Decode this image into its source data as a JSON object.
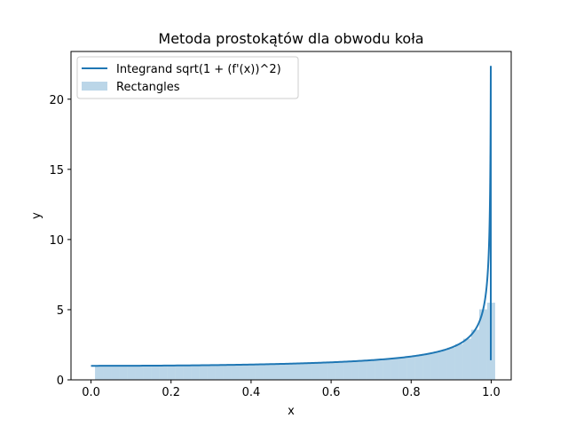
{
  "chart_data": {
    "type": "line",
    "title": "Metoda prostokątów dla obwodu koła",
    "xlabel": "x",
    "ylabel": "y",
    "xlim": [
      -0.05,
      1.05
    ],
    "ylim": [
      0,
      23.4
    ],
    "xticks": [
      "0.0",
      "0.2",
      "0.4",
      "0.6",
      "0.8",
      "1.0"
    ],
    "yticks": [
      "0",
      "5",
      "10",
      "15",
      "20"
    ],
    "legend_position": "top-left",
    "colors": {
      "line": "#1f77b4",
      "bars": "#1f77b4"
    },
    "series": [
      {
        "name": "Integrand sqrt(1 + (f'(x))^2)",
        "type": "line",
        "formula": "1/sqrt(1-x^2)",
        "x_start": 0.0,
        "x_end": 0.999,
        "y_at_x_end": 22.37
      },
      {
        "name": "Rectangles",
        "type": "bar",
        "bar_width": 0.02,
        "x": [
          0.02,
          0.04,
          0.06,
          0.08,
          0.1,
          0.12,
          0.14,
          0.16,
          0.18,
          0.2,
          0.22,
          0.24,
          0.26,
          0.28,
          0.3,
          0.32,
          0.34,
          0.36,
          0.38,
          0.4,
          0.42,
          0.44,
          0.46,
          0.48,
          0.5,
          0.52,
          0.54,
          0.56,
          0.58,
          0.6,
          0.62,
          0.64,
          0.66,
          0.68,
          0.7,
          0.72,
          0.74,
          0.76,
          0.78,
          0.8,
          0.82,
          0.84,
          0.86,
          0.88,
          0.9,
          0.92,
          0.94,
          0.96,
          0.98,
          1.0
        ],
        "values": [
          1.0002,
          1.0008,
          1.0018,
          1.0032,
          1.005,
          1.0073,
          1.0099,
          1.013,
          1.0166,
          1.0206,
          1.0251,
          1.0301,
          1.0356,
          1.0417,
          1.0483,
          1.0555,
          1.0633,
          1.0718,
          1.081,
          1.0911,
          1.1019,
          1.1136,
          1.1263,
          1.14,
          1.1547,
          1.1707,
          1.1881,
          1.207,
          1.2275,
          1.25,
          1.2745,
          1.3015,
          1.3312,
          1.3639,
          1.4003,
          1.4409,
          1.4867,
          1.5386,
          1.598,
          1.6667,
          1.7471,
          1.8428,
          1.9587,
          2.1053,
          2.2942,
          2.5516,
          2.931,
          3.5714,
          5.0252,
          5.5
        ]
      }
    ]
  }
}
